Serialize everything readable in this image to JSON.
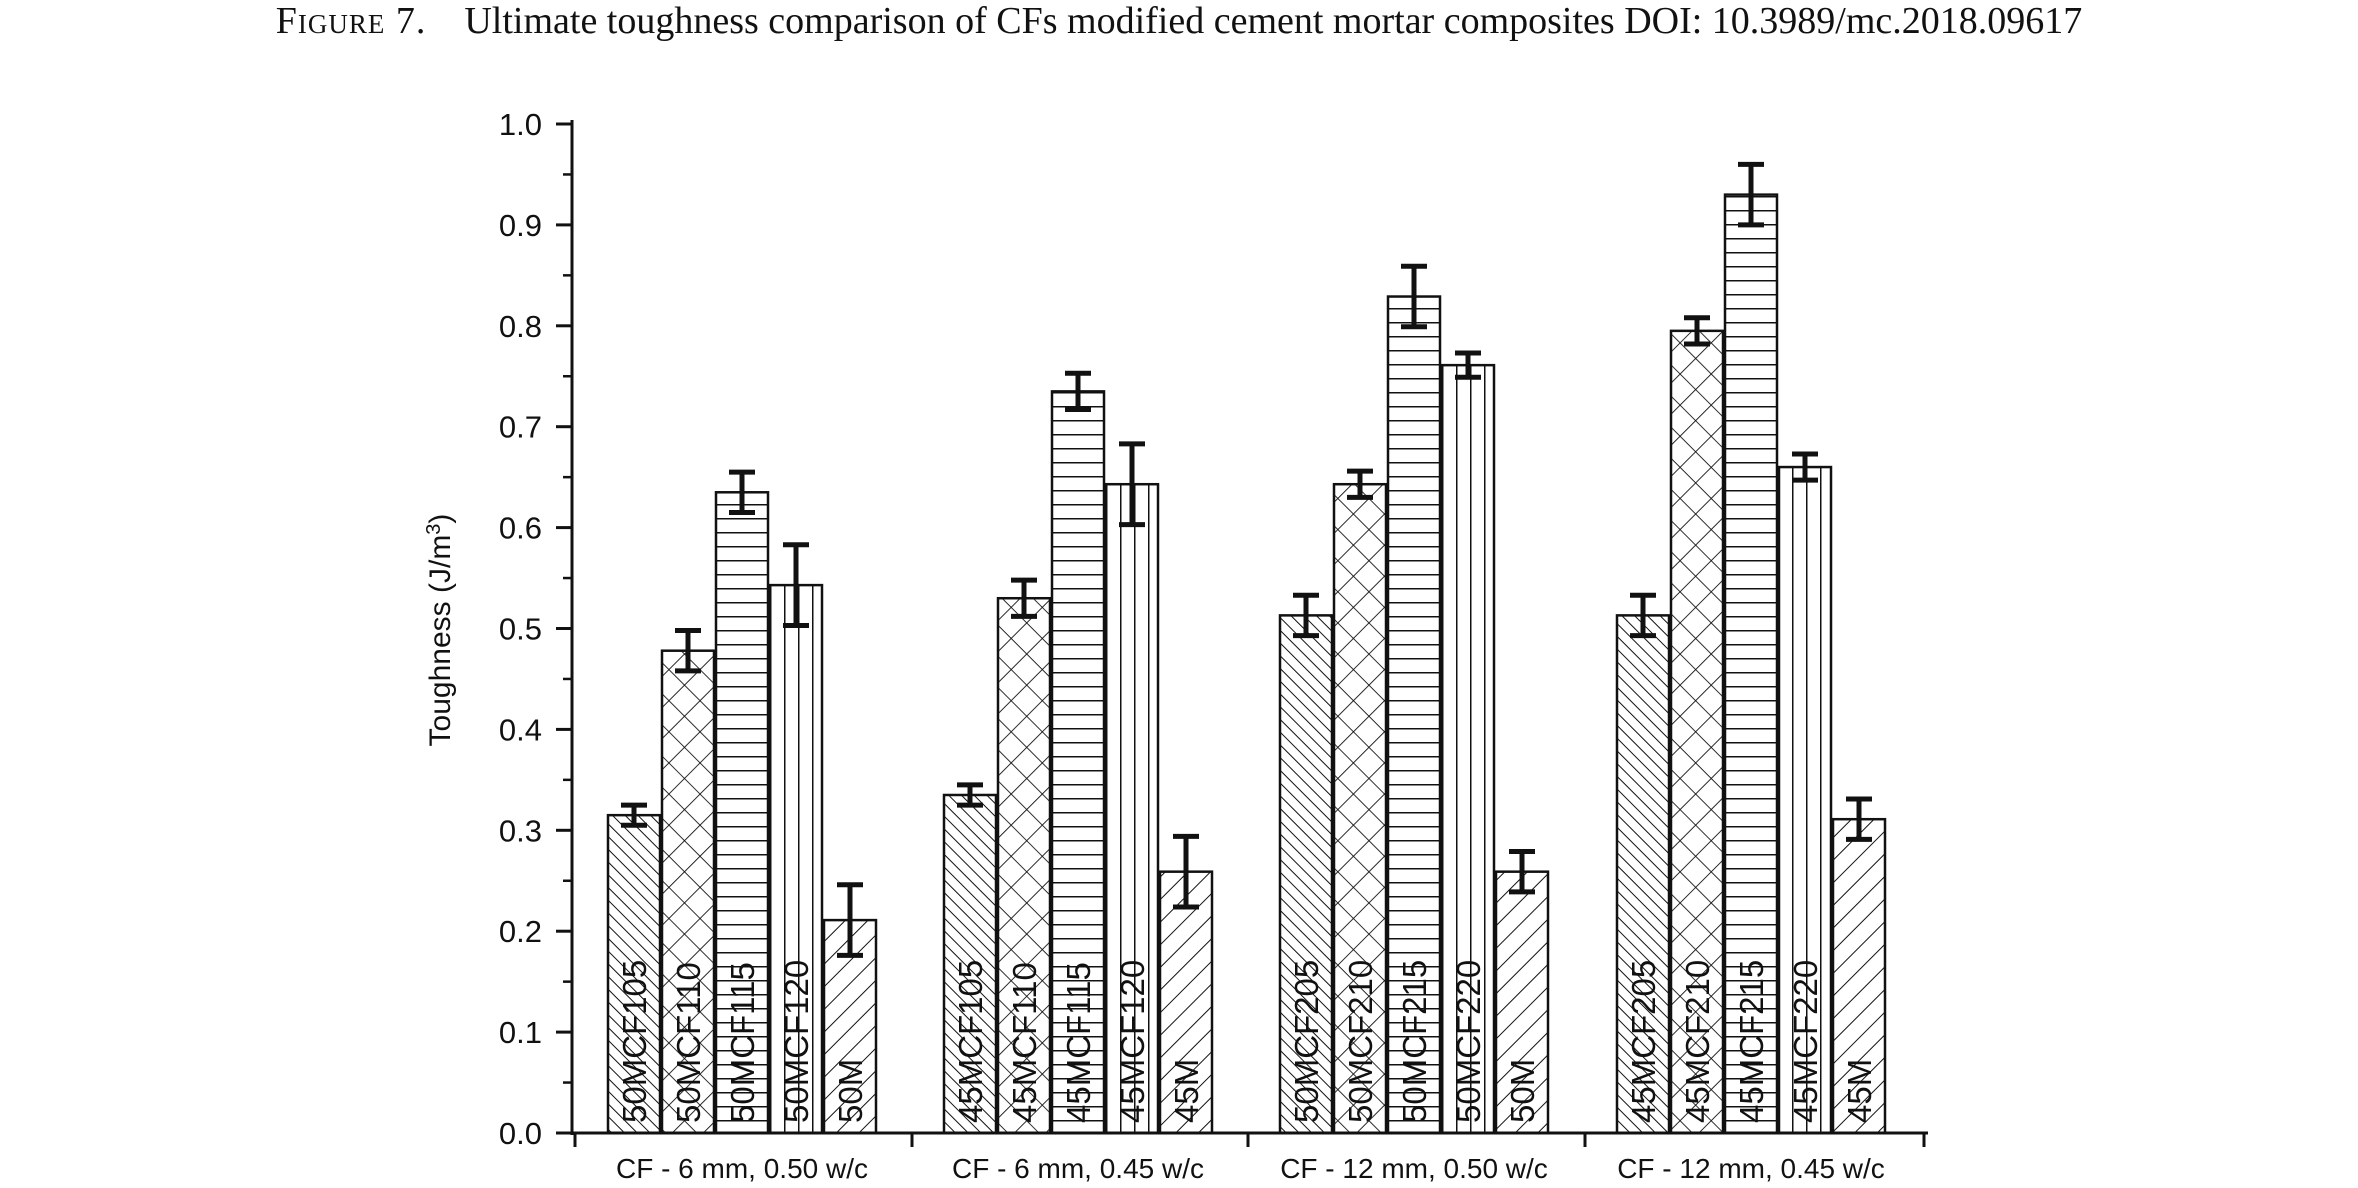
{
  "caption": {
    "figure_label": "Figure 7.",
    "text": "Ultimate toughness comparison of CFs modified cement mortar composites DOI: 10.3989/mc.2018.09617"
  },
  "chart_data": {
    "type": "bar",
    "ylabel_main": "Toughness (J/m",
    "ylabel_sup": "3",
    "ylabel_close": ")",
    "ylim": [
      0.0,
      1.0
    ],
    "yticks": [
      "0.0",
      "0.1",
      "0.2",
      "0.3",
      "0.4",
      "0.5",
      "0.6",
      "0.7",
      "0.8",
      "0.9",
      "1.0"
    ],
    "groups": [
      {
        "label": "CF - 6 mm, 0.50 w/c",
        "bars": [
          {
            "label": "50MCF105",
            "value": 0.315,
            "err": 0.01,
            "pattern": "diag-fine"
          },
          {
            "label": "50MCF110",
            "value": 0.478,
            "err": 0.02,
            "pattern": "crosshatch"
          },
          {
            "label": "50MCF115",
            "value": 0.635,
            "err": 0.02,
            "pattern": "horizontal"
          },
          {
            "label": "50MCF120",
            "value": 0.543,
            "err": 0.04,
            "pattern": "vertical"
          },
          {
            "label": "50M",
            "value": 0.211,
            "err": 0.035,
            "pattern": "diag-back"
          }
        ]
      },
      {
        "label": "CF - 6 mm, 0.45 w/c",
        "bars": [
          {
            "label": "45MCF105",
            "value": 0.335,
            "err": 0.01,
            "pattern": "diag-fine"
          },
          {
            "label": "45MCF110",
            "value": 0.53,
            "err": 0.018,
            "pattern": "crosshatch"
          },
          {
            "label": "45MCF115",
            "value": 0.735,
            "err": 0.018,
            "pattern": "horizontal"
          },
          {
            "label": "45MCF120",
            "value": 0.643,
            "err": 0.04,
            "pattern": "vertical"
          },
          {
            "label": "45M",
            "value": 0.259,
            "err": 0.035,
            "pattern": "diag-back"
          }
        ]
      },
      {
        "label": "CF - 12 mm, 0.50 w/c",
        "bars": [
          {
            "label": "50MCF205",
            "value": 0.513,
            "err": 0.02,
            "pattern": "diag-fine"
          },
          {
            "label": "50MCF210",
            "value": 0.643,
            "err": 0.013,
            "pattern": "crosshatch"
          },
          {
            "label": "50MCF215",
            "value": 0.829,
            "err": 0.03,
            "pattern": "horizontal"
          },
          {
            "label": "50MCF220",
            "value": 0.761,
            "err": 0.012,
            "pattern": "vertical"
          },
          {
            "label": "50M",
            "value": 0.259,
            "err": 0.02,
            "pattern": "diag-back"
          }
        ]
      },
      {
        "label": "CF - 12 mm, 0.45 w/c",
        "bars": [
          {
            "label": "45MCF205",
            "value": 0.513,
            "err": 0.02,
            "pattern": "diag-fine"
          },
          {
            "label": "45MCF210",
            "value": 0.795,
            "err": 0.013,
            "pattern": "crosshatch"
          },
          {
            "label": "45MCF215",
            "value": 0.93,
            "err": 0.03,
            "pattern": "horizontal"
          },
          {
            "label": "45MCF220",
            "value": 0.66,
            "err": 0.013,
            "pattern": "vertical"
          },
          {
            "label": "45M",
            "value": 0.311,
            "err": 0.02,
            "pattern": "diag-back"
          }
        ]
      }
    ],
    "grid": false,
    "legend": "none"
  },
  "colors": {
    "ink": "#111111",
    "background": "#ffffff"
  }
}
